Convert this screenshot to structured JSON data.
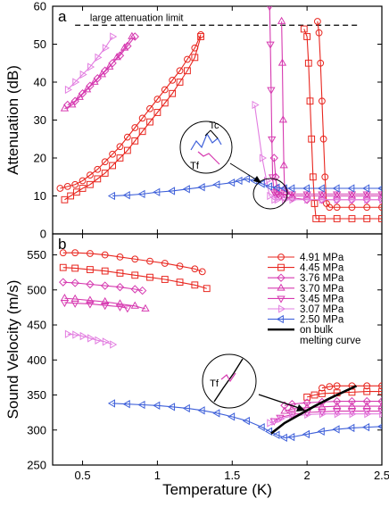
{
  "chart_data": [
    {
      "type": "line",
      "panel_tag": "a",
      "ylabel": "Attenuation (dB)",
      "xlim": [
        0.3,
        2.5
      ],
      "ylim": [
        0,
        60
      ],
      "xticks": [
        0.5,
        1,
        1.5,
        2,
        2.5
      ],
      "yticks": [
        0,
        10,
        20,
        30,
        40,
        50,
        60
      ],
      "xtick_labels": [
        "",
        "",
        "",
        "",
        ""
      ],
      "ytick_labels": [
        "0",
        "10",
        "20",
        "30",
        "40",
        "50",
        "60"
      ],
      "limit_line": {
        "y": 55,
        "label": "large attenuation limit"
      },
      "annotations": {
        "tc": "Tc",
        "tf": "Tf"
      },
      "series": [
        {
          "name": "4.91 MPa",
          "color": "#e8261f",
          "marker": "circle",
          "x": [
            0.35,
            0.4,
            0.45,
            0.5,
            0.55,
            0.6,
            0.65,
            0.7,
            0.75,
            0.8,
            0.85,
            0.9,
            0.95,
            1.0,
            1.05,
            1.1,
            1.15,
            1.2,
            1.25,
            1.29,
            2.07,
            2.08,
            2.09,
            2.1,
            2.11,
            2.12,
            2.13,
            2.15,
            2.2,
            2.3,
            2.4,
            2.5
          ],
          "y": [
            12,
            12.5,
            13,
            14,
            15.5,
            17,
            19,
            21,
            23,
            25.5,
            28,
            30.5,
            33,
            35.5,
            38,
            40.5,
            43,
            46,
            49,
            52.5,
            56,
            53,
            45,
            35,
            25,
            15,
            8,
            7,
            7,
            7,
            7,
            7
          ]
        },
        {
          "name": "4.45 MPa",
          "color": "#e8261f",
          "marker": "square",
          "x": [
            0.38,
            0.42,
            0.46,
            0.5,
            0.55,
            0.6,
            0.65,
            0.7,
            0.75,
            0.8,
            0.85,
            0.9,
            0.95,
            1.0,
            1.05,
            1.1,
            1.15,
            1.2,
            1.25,
            1.29,
            1.98,
            2.0,
            2.01,
            2.02,
            2.03,
            2.04,
            2.05,
            2.06,
            2.1,
            2.2,
            2.3,
            2.4,
            2.5
          ],
          "y": [
            9,
            10,
            11,
            12,
            13,
            14.5,
            16,
            18,
            20,
            22,
            24.5,
            27,
            29.5,
            32,
            34.5,
            37,
            40,
            43,
            46.5,
            52,
            54,
            52,
            45,
            35,
            25,
            15,
            8,
            4,
            4,
            4,
            4,
            4,
            4
          ]
        },
        {
          "name": "3.76 MPa",
          "color": "#d63ab0",
          "marker": "diamond",
          "x": [
            0.4,
            0.45,
            0.5,
            0.55,
            0.6,
            0.65,
            0.7,
            0.75,
            0.8,
            0.85,
            1.78,
            1.79,
            1.8,
            1.81,
            1.82,
            1.85,
            1.9,
            2.0,
            2.1,
            2.2,
            2.3,
            2.4,
            2.5
          ],
          "y": [
            34,
            35,
            37,
            39,
            41,
            43,
            45,
            47,
            49.5,
            52,
            20,
            15,
            12,
            10.5,
            10,
            9.5,
            9.5,
            9,
            9,
            9,
            9,
            9,
            9
          ]
        },
        {
          "name": "3.70 MPa",
          "color": "#d63ab0",
          "marker": "triangle-up",
          "x": [
            0.38,
            0.43,
            0.48,
            0.53,
            0.58,
            0.63,
            0.68,
            0.73,
            0.78,
            0.83,
            1.83,
            1.835,
            1.84,
            1.845,
            1.85,
            1.86,
            1.9,
            2.0,
            2.1,
            2.2,
            2.3,
            2.4,
            2.5
          ],
          "y": [
            33,
            34,
            36,
            38,
            40,
            42,
            44,
            46.5,
            49,
            52,
            56,
            45,
            30,
            18,
            12,
            11,
            10,
            10,
            10,
            10,
            10,
            10,
            10
          ]
        },
        {
          "name": "3.45 MPa",
          "color": "#d63ab0",
          "marker": "triangle-down",
          "x": [
            1.75,
            1.755,
            1.76,
            1.765,
            1.77,
            1.78,
            1.79,
            1.8,
            1.85,
            1.9,
            2.0,
            2.1,
            2.2,
            2.3,
            2.4,
            2.5
          ],
          "y": [
            60,
            50,
            38,
            25,
            15,
            11,
            10.5,
            10.5,
            10.5,
            10.5,
            10.5,
            10.5,
            10.5,
            10.5,
            10.5,
            10.5
          ]
        },
        {
          "name": "3.07 MPa",
          "color": "#e27de0",
          "marker": "triangle-right",
          "x": [
            0.4,
            0.45,
            0.5,
            0.55,
            0.6,
            0.65,
            0.7,
            1.65,
            1.7,
            1.73,
            1.75,
            1.78,
            1.8,
            1.85,
            1.9,
            2.0,
            2.1,
            2.2,
            2.3,
            2.4,
            2.5
          ],
          "y": [
            38,
            40,
            42,
            44,
            46.5,
            49,
            52,
            34,
            20,
            14,
            10,
            9,
            9,
            9,
            9,
            9,
            9,
            9,
            9,
            9,
            9
          ]
        },
        {
          "name": "2.50 MPa",
          "color": "#3d5fd9",
          "marker": "triangle-left",
          "x": [
            0.7,
            0.8,
            0.9,
            1.0,
            1.1,
            1.2,
            1.3,
            1.4,
            1.5,
            1.55,
            1.6,
            1.65,
            1.7,
            1.75,
            1.8,
            1.85,
            1.9,
            2.0,
            2.1,
            2.2,
            2.3,
            2.4,
            2.5
          ],
          "y": [
            10,
            10.2,
            10.5,
            11,
            11.3,
            11.8,
            12.3,
            13,
            13.5,
            14,
            14.5,
            14,
            13.2,
            12.5,
            12.2,
            12,
            12,
            12,
            12,
            12,
            12,
            12,
            12
          ]
        }
      ]
    },
    {
      "type": "line",
      "panel_tag": "b",
      "xlabel": "Temperature (K)",
      "ylabel": "Sound Velocity (m/s)",
      "xlim": [
        0.3,
        2.5
      ],
      "ylim": [
        250,
        580
      ],
      "xticks": [
        0.5,
        1,
        1.5,
        2,
        2.5
      ],
      "yticks": [
        250,
        300,
        350,
        400,
        450,
        500,
        550
      ],
      "xtick_labels": [
        "0.5",
        "1",
        "1.5",
        "2",
        "2.5"
      ],
      "ytick_labels": [
        "250",
        "300",
        "350",
        "400",
        "450",
        "500",
        "550"
      ],
      "annotations": {
        "tf": "Tf"
      },
      "legend_extra": "on bulk melting curve",
      "series": [
        {
          "name": "4.91 MPa",
          "color": "#e8261f",
          "marker": "circle",
          "x": [
            0.37,
            0.45,
            0.55,
            0.65,
            0.75,
            0.85,
            0.95,
            1.05,
            1.15,
            1.25,
            1.3,
            2.1,
            2.15,
            2.2,
            2.3,
            2.4,
            2.5
          ],
          "y": [
            553,
            553,
            552,
            550,
            547,
            544,
            541,
            538,
            534,
            530,
            526,
            360,
            362,
            363,
            363,
            363,
            363
          ]
        },
        {
          "name": "4.45 MPa",
          "color": "#e8261f",
          "marker": "square",
          "x": [
            0.37,
            0.45,
            0.55,
            0.65,
            0.75,
            0.85,
            0.95,
            1.05,
            1.15,
            1.25,
            1.33,
            2.0,
            2.05,
            2.1,
            2.2,
            2.3,
            2.4,
            2.5
          ],
          "y": [
            532,
            531,
            529,
            527,
            524,
            521,
            518,
            515,
            511,
            507,
            502,
            347,
            350,
            352,
            353,
            354,
            355,
            355
          ]
        },
        {
          "name": "3.76 MPa",
          "color": "#d63ab0",
          "marker": "diamond",
          "x": [
            0.37,
            0.45,
            0.55,
            0.65,
            0.75,
            0.85,
            0.9,
            1.85,
            1.9,
            2.0,
            2.1,
            2.2,
            2.3,
            2.4,
            2.5
          ],
          "y": [
            511,
            510,
            508,
            506,
            504,
            501,
            499,
            335,
            337,
            339,
            340,
            341,
            341,
            341,
            341
          ]
        },
        {
          "name": "3.70 MPa",
          "color": "#d63ab0",
          "marker": "triangle-up",
          "x": [
            0.38,
            0.45,
            0.55,
            0.65,
            0.75,
            0.85,
            0.92,
            1.85,
            1.9,
            2.0,
            2.1,
            2.2,
            2.3,
            2.4,
            2.5
          ],
          "y": [
            488,
            487,
            485,
            483,
            480,
            477,
            473,
            327,
            330,
            332,
            333,
            334,
            334,
            334,
            334
          ]
        },
        {
          "name": "3.45 MPa",
          "color": "#d63ab0",
          "marker": "triangle-down",
          "x": [
            0.38,
            0.45,
            0.55,
            0.65,
            0.75,
            0.8,
            1.78,
            1.82,
            1.9,
            2.0,
            2.1,
            2.2,
            2.3,
            2.4,
            2.5
          ],
          "y": [
            482,
            481,
            480,
            478,
            476,
            474,
            313,
            318,
            322,
            325,
            326,
            327,
            327,
            327,
            327
          ]
        },
        {
          "name": "3.07 MPa",
          "color": "#e27de0",
          "marker": "triangle-right",
          "x": [
            0.4,
            0.45,
            0.5,
            0.55,
            0.6,
            0.65,
            0.7,
            1.75,
            1.78,
            1.82,
            1.9,
            2.0,
            2.1,
            2.2,
            2.3,
            2.4,
            2.5
          ],
          "y": [
            437,
            436,
            434,
            431,
            428,
            426,
            422,
            310,
            312,
            316,
            320,
            322,
            323,
            323,
            323,
            323,
            323
          ]
        },
        {
          "name": "2.50 MPa",
          "color": "#3d5fd9",
          "marker": "triangle-left",
          "x": [
            0.7,
            0.8,
            0.9,
            1.0,
            1.1,
            1.2,
            1.3,
            1.4,
            1.5,
            1.6,
            1.7,
            1.75,
            1.8,
            1.85,
            1.9,
            2.0,
            2.1,
            2.2,
            2.3,
            2.4,
            2.5
          ],
          "y": [
            338,
            337,
            336,
            335,
            333,
            331,
            328,
            324,
            319,
            313,
            304,
            298,
            293,
            289,
            290,
            294,
            298,
            301,
            303,
            304,
            305
          ]
        },
        {
          "name": "on bulk melting curve",
          "color": "#000000",
          "marker": "none",
          "x": [
            1.76,
            1.85,
            1.95,
            2.05,
            2.15,
            2.25,
            2.33
          ],
          "y": [
            295,
            310,
            322,
            334,
            345,
            355,
            363
          ]
        }
      ]
    }
  ]
}
